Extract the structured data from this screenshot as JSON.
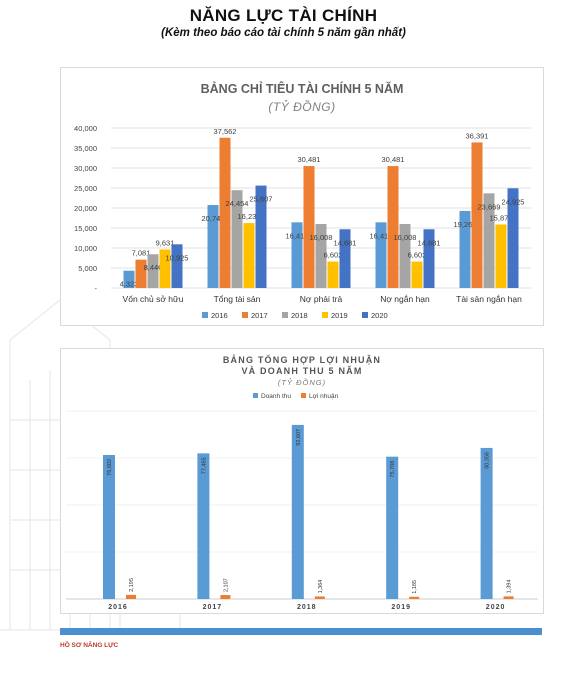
{
  "page": {
    "title": "NĂNG LỰC TÀI CHÍNH",
    "subtitle": "(Kèm theo báo cáo tài chính 5 năm gần nhất)",
    "footer": "HỒ SƠ NĂNG LỰC"
  },
  "chart_data": [
    {
      "type": "bar",
      "title": "BẢNG CHỈ TIÊU TÀI CHÍNH 5 NĂM",
      "subtitle": "(TỶ ĐỒNG)",
      "categories": [
        "Vốn chủ sở hữu",
        "Tổng tài sản",
        "Nợ phải trả",
        "Nợ ngắn hạn",
        "Tài sản ngắn hạn"
      ],
      "series": [
        {
          "name": "2016",
          "color": "#5b9bd5",
          "values": [
            4323,
            20742,
            16419,
            16419,
            19267
          ]
        },
        {
          "name": "2017",
          "color": "#ed7d31",
          "values": [
            7081,
            37562,
            30481,
            30481,
            36391
          ]
        },
        {
          "name": "2018",
          "color": "#a5a5a5",
          "values": [
            8440,
            24454,
            16008,
            16008,
            23669
          ]
        },
        {
          "name": "2019",
          "color": "#ffc000",
          "values": [
            9631,
            16234,
            6602,
            6602,
            15873
          ]
        },
        {
          "name": "2020",
          "color": "#4472c4",
          "values": [
            10925,
            25607,
            14681,
            14681,
            24925
          ]
        }
      ],
      "labels": [
        [
          "4,323",
          "7,081",
          "8,440",
          "9,631",
          "10,925"
        ],
        [
          "20,742",
          "37,562",
          "24,454",
          "16,234",
          "25,607"
        ],
        [
          "16,419",
          "30,481",
          "16,008",
          "6,602",
          "14,681"
        ],
        [
          "16,419",
          "30,481",
          "16,008",
          "6,602",
          "14,681"
        ],
        [
          "19,267",
          "36,391",
          "23,669",
          "15,873",
          "24,925"
        ]
      ],
      "ylim": [
        0,
        40000
      ],
      "yticks": [
        "-",
        "5,000",
        "10,000",
        "15,000",
        "20,000",
        "25,000",
        "30,000",
        "35,000",
        "40,000"
      ],
      "grid": true,
      "legend": "bottom"
    },
    {
      "type": "bar",
      "title_lines": [
        "BẢNG TỔNG HỢP LỢI NHUẬN",
        "VÀ DOANH THU 5 NĂM"
      ],
      "subtitle": "(TỶ ĐỒNG)",
      "categories": [
        "2016",
        "2017",
        "2018",
        "2019",
        "2020"
      ],
      "series": [
        {
          "name": "Doanh thu",
          "color": "#5b9bd5",
          "values": [
            76602,
            77465,
            92607,
            75708,
            80356
          ]
        },
        {
          "name": "Lợi nhuận",
          "color": "#ed7d31",
          "values": [
            2195,
            2107,
            1364,
            1185,
            1394
          ]
        }
      ],
      "labels": [
        [
          "76,602",
          "77,465",
          "92,607",
          "75,708",
          "80,356"
        ],
        [
          "2,195",
          "2,107",
          "1,364",
          "1,185",
          "1,394"
        ]
      ],
      "ylim": [
        0,
        100000
      ],
      "grid": true,
      "legend": "top"
    }
  ]
}
